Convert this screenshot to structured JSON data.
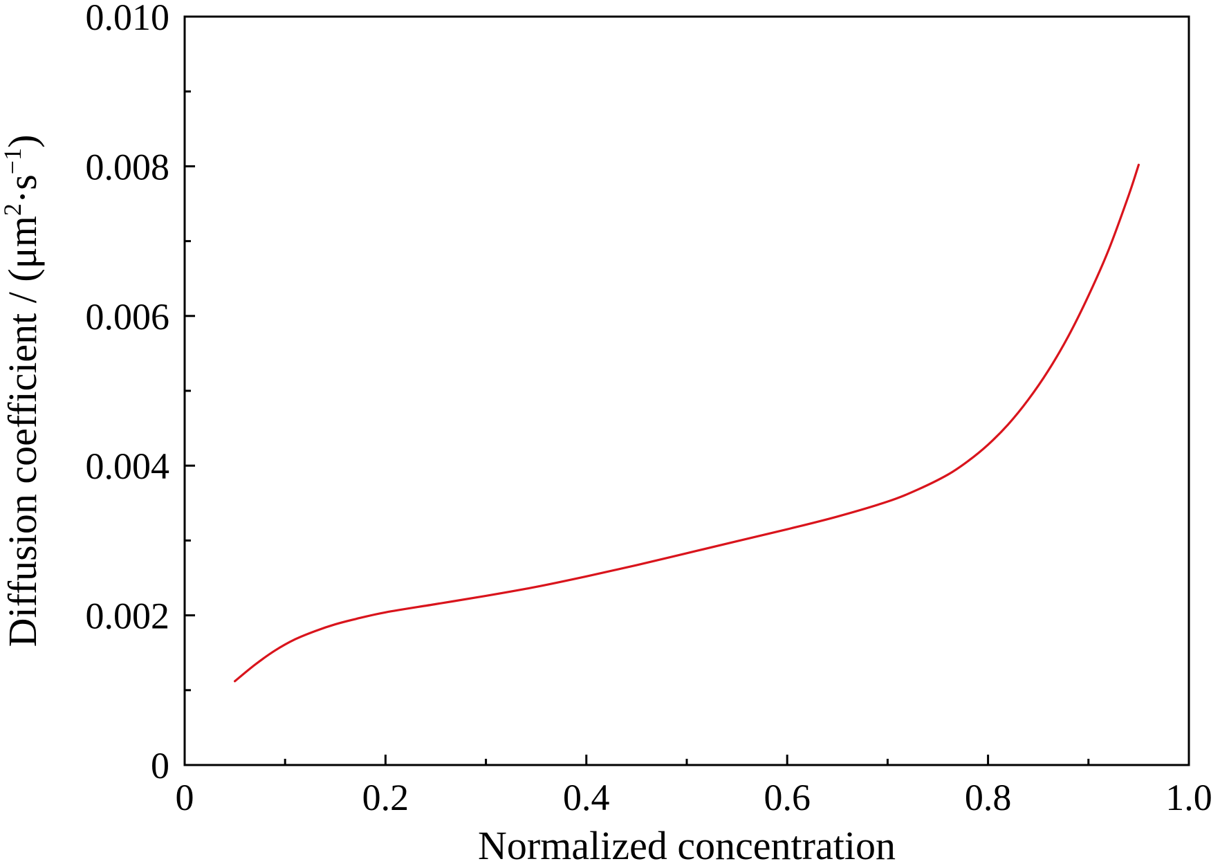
{
  "chart_data": {
    "type": "line",
    "title": "",
    "xlabel": "Normalized concentration",
    "ylabel": {
      "prefix": "Diffusion coefficient / (μm",
      "sup1": "2",
      "mid": "·s",
      "sup2": "−1",
      "suffix": ")"
    },
    "xlim": [
      0,
      1.0
    ],
    "ylim": [
      0,
      0.01
    ],
    "x_ticks": [
      0,
      0.2,
      0.4,
      0.6,
      0.8,
      1.0
    ],
    "x_tick_labels": [
      "0",
      "0.2",
      "0.4",
      "0.6",
      "0.8",
      "1.0"
    ],
    "x_minor_ticks": [
      0.1,
      0.3,
      0.5,
      0.7,
      0.9
    ],
    "y_ticks": [
      0,
      0.002,
      0.004,
      0.006,
      0.008,
      0.01
    ],
    "y_tick_labels": [
      "0",
      "0.002",
      "0.004",
      "0.006",
      "0.008",
      "0.010"
    ],
    "y_minor_ticks": [
      0.001,
      0.003,
      0.005,
      0.007,
      0.009
    ],
    "grid": false,
    "legend": "none",
    "series": [
      {
        "color": "#d9141c",
        "x": [
          0.05,
          0.07,
          0.09,
          0.11,
          0.13,
          0.15,
          0.17,
          0.2,
          0.25,
          0.3,
          0.35,
          0.4,
          0.45,
          0.5,
          0.55,
          0.6,
          0.65,
          0.7,
          0.73,
          0.76,
          0.78,
          0.8,
          0.82,
          0.84,
          0.86,
          0.88,
          0.9,
          0.92,
          0.94,
          0.95
        ],
        "y": [
          0.00112,
          0.00134,
          0.00153,
          0.00168,
          0.00179,
          0.00188,
          0.00195,
          0.00204,
          0.00215,
          0.00226,
          0.00238,
          0.00252,
          0.00267,
          0.00283,
          0.00299,
          0.00315,
          0.00332,
          0.00352,
          0.00368,
          0.00388,
          0.00406,
          0.00428,
          0.00455,
          0.00488,
          0.00527,
          0.00573,
          0.00627,
          0.00688,
          0.00761,
          0.00802
        ]
      }
    ]
  }
}
